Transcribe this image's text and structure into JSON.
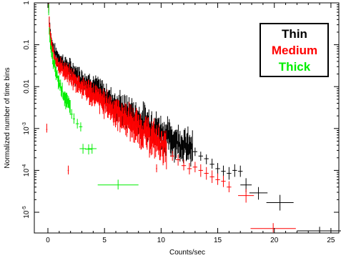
{
  "chart_data": {
    "type": "scatter",
    "xlabel": "Counts/sec",
    "ylabel": "Normalized number of time bins",
    "xlim": [
      -1.2,
      25.7
    ],
    "ylim": [
      3.2e-06,
      1.0
    ],
    "yscale": "log",
    "x_ticks": [
      0,
      5,
      10,
      15,
      20,
      25
    ],
    "y_ticks": [
      {
        "value": 1e-05,
        "base": "10",
        "exp": "-5"
      },
      {
        "value": 0.0001,
        "base": "10",
        "exp": "-4"
      },
      {
        "value": 0.001,
        "base": "10",
        "exp": "-3"
      },
      {
        "value": 0.01,
        "base": "",
        "exp": "",
        "text": "0.01"
      },
      {
        "value": 0.1,
        "base": "",
        "exp": "",
        "text": "0.1"
      },
      {
        "value": 1,
        "base": "",
        "exp": "",
        "text": "1"
      }
    ],
    "grid": false,
    "legend_position": "top-right",
    "series": [
      {
        "name": "Thin",
        "color": "#000000",
        "dense": [
          [
            0.05,
            0.95
          ],
          [
            0.15,
            0.3
          ],
          [
            0.3,
            0.12
          ],
          [
            0.6,
            0.065
          ],
          [
            1.0,
            0.045
          ],
          [
            2.0,
            0.025
          ],
          [
            3.0,
            0.015
          ],
          [
            4.0,
            0.01
          ],
          [
            5.0,
            0.006
          ],
          [
            6.0,
            0.0036
          ],
          [
            7.0,
            0.0024
          ],
          [
            8.0,
            0.0016
          ],
          [
            9.0,
            0.0012
          ],
          [
            10.0,
            0.0008
          ],
          [
            11.0,
            0.00055
          ],
          [
            12.0,
            0.0004
          ],
          [
            12.8,
            0.0003
          ]
        ],
        "points": [
          {
            "x": 13.0,
            "y": 0.00028,
            "xerr": 0.2,
            "ylo": 0.00022,
            "yhi": 0.00035
          },
          {
            "x": 13.5,
            "y": 0.00022,
            "xerr": 0.2,
            "ylo": 0.00017,
            "yhi": 0.00028
          },
          {
            "x": 14.0,
            "y": 0.00019,
            "xerr": 0.2,
            "ylo": 0.00014,
            "yhi": 0.00024
          },
          {
            "x": 14.5,
            "y": 0.00014,
            "xerr": 0.2,
            "ylo": 0.00011,
            "yhi": 0.00019
          },
          {
            "x": 15.0,
            "y": 0.00011,
            "xerr": 0.2,
            "ylo": 8e-05,
            "yhi": 0.00015
          },
          {
            "x": 15.5,
            "y": 9.5e-05,
            "xerr": 0.2,
            "ylo": 7e-05,
            "yhi": 0.00013
          },
          {
            "x": 16.0,
            "y": 8.5e-05,
            "xerr": 0.2,
            "ylo": 6e-05,
            "yhi": 0.00012
          },
          {
            "x": 16.5,
            "y": 0.0001,
            "xerr": 0.2,
            "ylo": 7e-05,
            "yhi": 0.00014
          },
          {
            "x": 17.0,
            "y": 9.5e-05,
            "xerr": 0.2,
            "ylo": 7e-05,
            "yhi": 0.00013
          },
          {
            "x": 17.5,
            "y": 4.5e-05,
            "xerr": 0.5,
            "ylo": 3e-05,
            "yhi": 6.5e-05
          },
          {
            "x": 18.6,
            "y": 2.9e-05,
            "xerr": 0.8,
            "ylo": 2e-05,
            "yhi": 4e-05
          },
          {
            "x": 20.5,
            "y": 1.7e-05,
            "xerr": 1.2,
            "ylo": 1.1e-05,
            "yhi": 2.6e-05
          },
          {
            "x": 24.0,
            "y": 3.6e-06,
            "xerr": 2.0,
            "ylo": 3.3e-06,
            "yhi": 4.5e-06
          }
        ]
      },
      {
        "name": "Medium",
        "color": "#ff0000",
        "dense": [
          [
            0.05,
            0.95
          ],
          [
            0.15,
            0.25
          ],
          [
            0.3,
            0.1
          ],
          [
            0.6,
            0.05
          ],
          [
            1.0,
            0.032
          ],
          [
            2.0,
            0.017
          ],
          [
            3.0,
            0.01
          ],
          [
            4.0,
            0.0063
          ],
          [
            5.0,
            0.004
          ],
          [
            6.0,
            0.0025
          ],
          [
            7.0,
            0.0016
          ],
          [
            8.0,
            0.001
          ],
          [
            9.0,
            0.00065
          ],
          [
            10.0,
            0.00042
          ],
          [
            10.5,
            0.00033
          ]
        ],
        "points": [
          {
            "x": -0.1,
            "y": 0.00095,
            "xerr": 0.05,
            "ylo": 0.0008,
            "yhi": 0.0013
          },
          {
            "x": 11.0,
            "y": 0.00022,
            "xerr": 0.2,
            "ylo": 0.00017,
            "yhi": 0.00029
          },
          {
            "x": 11.5,
            "y": 0.00018,
            "xerr": 0.2,
            "ylo": 0.00013,
            "yhi": 0.00024
          },
          {
            "x": 12.0,
            "y": 0.00013,
            "xerr": 0.2,
            "ylo": 0.0001,
            "yhi": 0.00018
          },
          {
            "x": 12.5,
            "y": 0.00011,
            "xerr": 0.2,
            "ylo": 8e-05,
            "yhi": 0.00015
          },
          {
            "x": 13.0,
            "y": 0.00012,
            "xerr": 0.2,
            "ylo": 9e-05,
            "yhi": 0.00016
          },
          {
            "x": 13.5,
            "y": 0.0001,
            "xerr": 0.2,
            "ylo": 7e-05,
            "yhi": 0.00014
          },
          {
            "x": 14.0,
            "y": 8.5e-05,
            "xerr": 0.2,
            "ylo": 6e-05,
            "yhi": 0.00012
          },
          {
            "x": 14.5,
            "y": 7e-05,
            "xerr": 0.2,
            "ylo": 5e-05,
            "yhi": 0.0001
          },
          {
            "x": 15.0,
            "y": 6e-05,
            "xerr": 0.2,
            "ylo": 4.5e-05,
            "yhi": 8.5e-05
          },
          {
            "x": 15.5,
            "y": 5.5e-05,
            "xerr": 0.2,
            "ylo": 4e-05,
            "yhi": 7.5e-05
          },
          {
            "x": 16.0,
            "y": 4e-05,
            "xerr": 0.2,
            "ylo": 3e-05,
            "yhi": 5.5e-05
          },
          {
            "x": 17.5,
            "y": 2.5e-05,
            "xerr": 0.7,
            "ylo": 1.7e-05,
            "yhi": 3.6e-05
          },
          {
            "x": 19.9,
            "y": 4.1e-06,
            "xerr": 2.0,
            "ylo": 3.3e-06,
            "yhi": 5.5e-06
          },
          {
            "x": 1.8,
            "y": 0.0001,
            "xerr": 0.05,
            "ylo": 8e-05,
            "yhi": 0.00013
          },
          {
            "x": 9.6,
            "y": 0.00011,
            "xerr": 0.05,
            "ylo": 9e-05,
            "yhi": 0.00014
          }
        ]
      },
      {
        "name": "Thick",
        "color": "#00ee00",
        "dense": [
          [
            0.05,
            0.95
          ],
          [
            0.1,
            0.3
          ],
          [
            0.2,
            0.1
          ],
          [
            0.4,
            0.045
          ],
          [
            0.6,
            0.028
          ],
          [
            0.8,
            0.018
          ],
          [
            1.0,
            0.012
          ],
          [
            1.2,
            0.009
          ],
          [
            1.4,
            0.0065
          ],
          [
            1.6,
            0.0048
          ],
          [
            1.8,
            0.0036
          ],
          [
            2.0,
            0.0028
          ]
        ],
        "points": [
          {
            "x": 2.1,
            "y": 0.0022,
            "xerr": 0.1,
            "ylo": 0.0017,
            "yhi": 0.0029
          },
          {
            "x": 2.3,
            "y": 0.0017,
            "xerr": 0.1,
            "ylo": 0.0013,
            "yhi": 0.0023
          },
          {
            "x": 2.6,
            "y": 0.0013,
            "xerr": 0.15,
            "ylo": 0.001,
            "yhi": 0.0017
          },
          {
            "x": 2.9,
            "y": 0.0011,
            "xerr": 0.15,
            "ylo": 0.00085,
            "yhi": 0.0014
          },
          {
            "x": 3.1,
            "y": 0.00033,
            "xerr": 0.3,
            "ylo": 0.00025,
            "yhi": 0.00043
          },
          {
            "x": 3.6,
            "y": 0.00032,
            "xerr": 0.3,
            "ylo": 0.00024,
            "yhi": 0.00042
          },
          {
            "x": 3.9,
            "y": 0.00033,
            "xerr": 0.4,
            "ylo": 0.00025,
            "yhi": 0.00043
          },
          {
            "x": 6.2,
            "y": 4.5e-05,
            "xerr": 1.8,
            "ylo": 3.5e-05,
            "yhi": 6e-05
          }
        ]
      }
    ]
  }
}
